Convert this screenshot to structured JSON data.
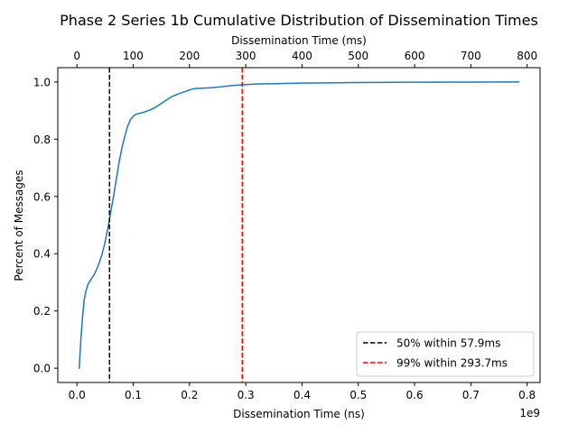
{
  "chart_data": {
    "type": "line",
    "title": "Phase 2 Series 1b Cumulative Distribution of Dissemination Times",
    "xlabel": "Dissemination Time (ns)",
    "x_offset_text": "1e9",
    "x_scale_factor": 1000000000,
    "xlim": [
      -0.034,
      0.823
    ],
    "xticks": [
      0.0,
      0.1,
      0.2,
      0.3,
      0.4,
      0.5,
      0.6,
      0.7,
      0.8
    ],
    "xtick_labels": [
      "0.0",
      "0.1",
      "0.2",
      "0.3",
      "0.4",
      "0.5",
      "0.6",
      "0.7",
      "0.8"
    ],
    "top_xlabel": "Dissemination Time (ms)",
    "top_xticks": [
      0,
      100,
      200,
      300,
      400,
      500,
      600,
      700,
      800
    ],
    "top_xtick_labels": [
      "0",
      "100",
      "200",
      "300",
      "400",
      "500",
      "600",
      "700",
      "800"
    ],
    "ylabel": "Percent of Messages",
    "ylim": [
      -0.05,
      1.05
    ],
    "yticks": [
      0.0,
      0.2,
      0.4,
      0.6,
      0.8,
      1.0
    ],
    "ytick_labels": [
      "0.0",
      "0.2",
      "0.4",
      "0.6",
      "0.8",
      "1.0"
    ],
    "grid": false,
    "legend_position": "bottom-right",
    "series": [
      {
        "name": "",
        "color": "#1f77b4",
        "x": [
          0.004,
          0.007,
          0.01,
          0.013,
          0.016,
          0.02,
          0.025,
          0.03,
          0.035,
          0.04,
          0.045,
          0.05,
          0.055,
          0.06,
          0.065,
          0.07,
          0.075,
          0.08,
          0.085,
          0.09,
          0.095,
          0.1,
          0.105,
          0.11,
          0.12,
          0.13,
          0.14,
          0.15,
          0.16,
          0.17,
          0.18,
          0.19,
          0.2,
          0.205,
          0.21,
          0.22,
          0.24,
          0.26,
          0.28,
          0.3,
          0.32,
          0.35,
          0.4,
          0.45,
          0.5,
          0.6,
          0.7,
          0.785
        ],
        "values": [
          0.0,
          0.1,
          0.18,
          0.24,
          0.27,
          0.295,
          0.31,
          0.325,
          0.345,
          0.37,
          0.4,
          0.44,
          0.49,
          0.545,
          0.6,
          0.66,
          0.72,
          0.77,
          0.81,
          0.845,
          0.868,
          0.88,
          0.887,
          0.89,
          0.895,
          0.902,
          0.912,
          0.925,
          0.938,
          0.95,
          0.958,
          0.965,
          0.972,
          0.975,
          0.977,
          0.978,
          0.98,
          0.984,
          0.988,
          0.991,
          0.993,
          0.994,
          0.996,
          0.997,
          0.998,
          0.999,
          0.9995,
          1.0
        ]
      }
    ],
    "reference_lines": [
      {
        "name": "50%  within 57.9ms",
        "x": 0.0579,
        "color": "#000000",
        "style": "dashed"
      },
      {
        "name": "99%  within 293.7ms",
        "x": 0.2937,
        "color": "#ff0000",
        "style": "dashed"
      }
    ]
  }
}
